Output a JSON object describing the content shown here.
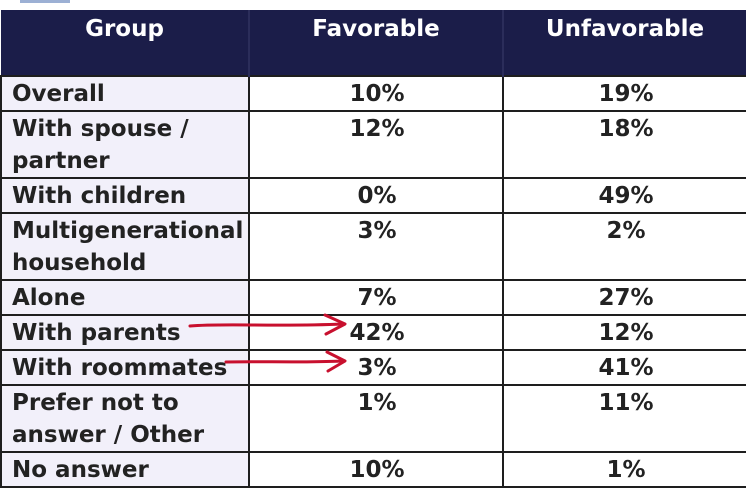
{
  "table": {
    "headers": [
      "Group",
      "Favorable",
      "Unfavorable"
    ],
    "rows": [
      {
        "group": "Overall",
        "favorable": "10%",
        "unfavorable": "19%"
      },
      {
        "group": "With spouse / partner",
        "favorable": "12%",
        "unfavorable": "18%"
      },
      {
        "group": "With children",
        "favorable": "0%",
        "unfavorable": "49%"
      },
      {
        "group": "Multigenerational household",
        "favorable": "3%",
        "unfavorable": "2%"
      },
      {
        "group": "Alone",
        "favorable": "7%",
        "unfavorable": "27%"
      },
      {
        "group": "With parents",
        "favorable": "42%",
        "unfavorable": "12%"
      },
      {
        "group": "With roommates",
        "favorable": "3%",
        "unfavorable": "41%"
      },
      {
        "group": "Prefer not to answer / Other",
        "favorable": "1%",
        "unfavorable": "11%"
      },
      {
        "group": "No answer",
        "favorable": "10%",
        "unfavorable": "1%"
      }
    ]
  },
  "annotations": {
    "arrow_color": "#c8102e"
  }
}
